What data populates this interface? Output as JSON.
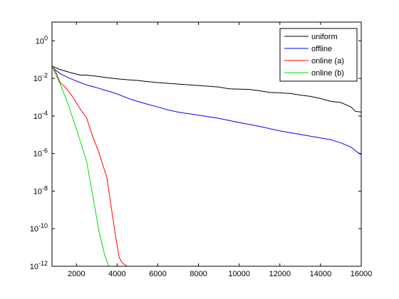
{
  "chart_data": {
    "type": "line",
    "title": "",
    "xlabel": "",
    "ylabel": "",
    "xlim": [
      800,
      16000
    ],
    "ylim": [
      1e-12,
      10
    ],
    "yscale": "log",
    "grid": false,
    "legend_position": "top-right",
    "x_ticks": [
      {
        "value": 2000,
        "label": "2000"
      },
      {
        "value": 4000,
        "label": "4000"
      },
      {
        "value": 6000,
        "label": "6000"
      },
      {
        "value": 8000,
        "label": "8000"
      },
      {
        "value": 10000,
        "label": "10000"
      },
      {
        "value": 12000,
        "label": "12000"
      },
      {
        "value": 14000,
        "label": "14000"
      },
      {
        "value": 16000,
        "label": "16000"
      }
    ],
    "y_ticks": [
      {
        "value": 1,
        "base": "10",
        "exp": "0"
      },
      {
        "value": 0.01,
        "base": "10",
        "exp": "-2"
      },
      {
        "value": 0.0001,
        "base": "10",
        "exp": "-4"
      },
      {
        "value": 1e-06,
        "base": "10",
        "exp": "-6"
      },
      {
        "value": 1e-08,
        "base": "10",
        "exp": "-8"
      },
      {
        "value": 1e-10,
        "base": "10",
        "exp": "-10"
      },
      {
        "value": 1e-12,
        "base": "10",
        "exp": "-12"
      }
    ],
    "series": [
      {
        "name": "uniform",
        "color": "#000000",
        "points": [
          [
            800,
            0.045
          ],
          [
            1200,
            0.03
          ],
          [
            1600,
            0.022
          ],
          [
            2000,
            0.017
          ],
          [
            2200,
            0.015
          ],
          [
            2500,
            0.015
          ],
          [
            3000,
            0.013
          ],
          [
            3500,
            0.011
          ],
          [
            4000,
            0.0095
          ],
          [
            4500,
            0.0085
          ],
          [
            5000,
            0.0078
          ],
          [
            5500,
            0.0068
          ],
          [
            6000,
            0.006
          ],
          [
            7000,
            0.005
          ],
          [
            8000,
            0.0042
          ],
          [
            9000,
            0.0035
          ],
          [
            9500,
            0.0028
          ],
          [
            10500,
            0.0026
          ],
          [
            11000,
            0.0022
          ],
          [
            11500,
            0.0018
          ],
          [
            12500,
            0.0016
          ],
          [
            13000,
            0.0013
          ],
          [
            13500,
            0.0011
          ],
          [
            14000,
            0.00085
          ],
          [
            14500,
            0.0006
          ],
          [
            15000,
            0.00052
          ],
          [
            15500,
            0.0003
          ],
          [
            15700,
            0.00018
          ],
          [
            16000,
            0.00016
          ]
        ]
      },
      {
        "name": "offline",
        "color": "#0000ff",
        "points": [
          [
            800,
            0.04
          ],
          [
            1200,
            0.018
          ],
          [
            1600,
            0.011
          ],
          [
            2000,
            0.0072
          ],
          [
            2500,
            0.0045
          ],
          [
            3000,
            0.0032
          ],
          [
            3500,
            0.0022
          ],
          [
            4000,
            0.0015
          ],
          [
            4500,
            0.0009
          ],
          [
            5000,
            0.0006
          ],
          [
            5500,
            0.00042
          ],
          [
            6000,
            0.0003
          ],
          [
            6500,
            0.00021
          ],
          [
            7000,
            0.00016
          ],
          [
            8000,
            0.00011
          ],
          [
            9000,
            7.5e-05
          ],
          [
            10000,
            4.5e-05
          ],
          [
            11000,
            2.8e-05
          ],
          [
            12000,
            1.6e-05
          ],
          [
            13000,
            1.05e-05
          ],
          [
            14000,
            6.8e-06
          ],
          [
            14500,
            5.5e-06
          ],
          [
            15000,
            3.7e-06
          ],
          [
            15500,
            2.2e-06
          ],
          [
            15800,
            1.2e-06
          ],
          [
            16000,
            9e-07
          ]
        ]
      },
      {
        "name": "online (a)",
        "color": "#ff0000",
        "points": [
          [
            800,
            0.045
          ],
          [
            1000,
            0.02
          ],
          [
            1200,
            0.006
          ],
          [
            1500,
            0.003
          ],
          [
            1800,
            0.0011
          ],
          [
            2200,
            0.00022
          ],
          [
            2500,
            8e-05
          ],
          [
            2800,
            8e-06
          ],
          [
            3100,
            1.2e-06
          ],
          [
            3500,
            5e-08
          ],
          [
            3900,
            6e-11
          ],
          [
            4100,
            3e-12
          ],
          [
            4250,
            1.5e-12
          ],
          [
            4500,
            1e-12
          ]
        ]
      },
      {
        "name": "online (b)",
        "color": "#00dd00",
        "points": [
          [
            800,
            0.045
          ],
          [
            1200,
            0.005
          ],
          [
            1600,
            0.0004
          ],
          [
            2000,
            2e-05
          ],
          [
            2500,
            4e-07
          ],
          [
            2800,
            6e-09
          ],
          [
            3100,
            8e-11
          ],
          [
            3400,
            3.5e-12
          ],
          [
            3600,
            1e-12
          ]
        ]
      }
    ]
  }
}
